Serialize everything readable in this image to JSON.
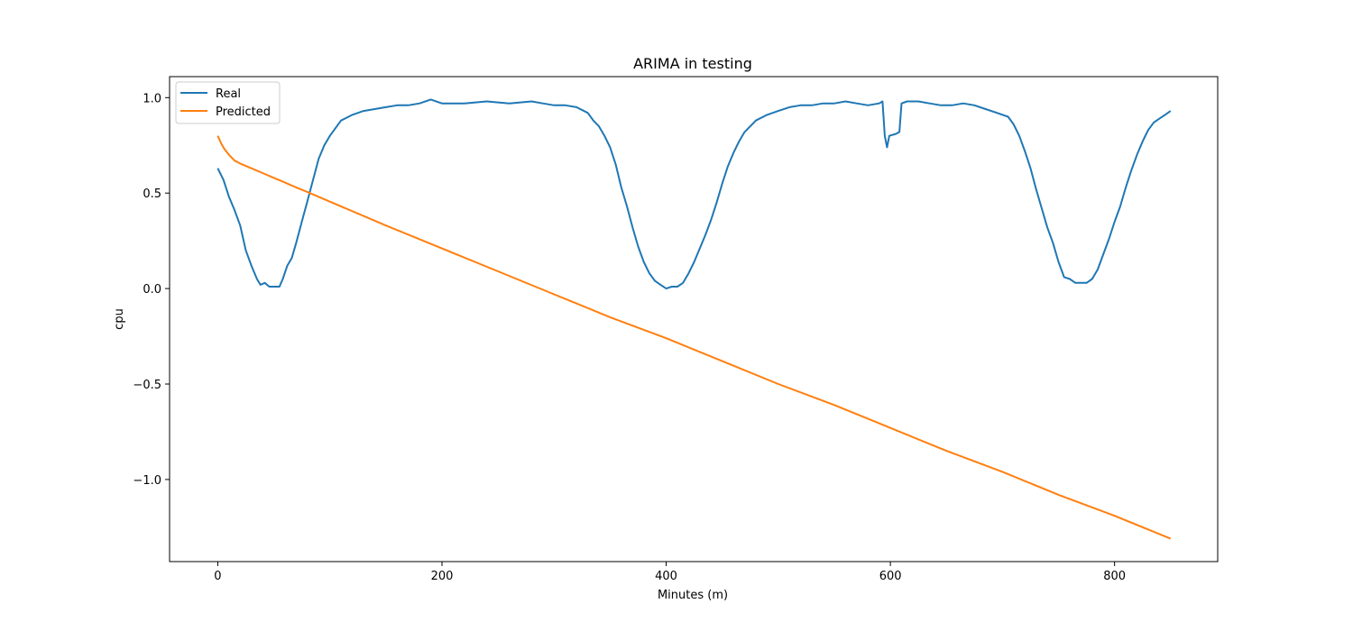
{
  "chart_data": {
    "type": "line",
    "title": "ARIMA in testing",
    "xlabel": "Minutes (m)",
    "ylabel": "cpu",
    "xlim": [
      -43,
      892
    ],
    "ylim": [
      -1.43,
      1.11
    ],
    "xticks": [
      0,
      200,
      400,
      600,
      800
    ],
    "yticks": [
      1.0,
      0.5,
      0.0,
      -0.5,
      -1.0
    ],
    "ytick_labels": [
      "1.0",
      "0.5",
      "0.0",
      "−0.5",
      "−1.0"
    ],
    "legend_position": "upper-left",
    "grid": false,
    "series": [
      {
        "name": "Real",
        "color": "#1f77b4",
        "points": [
          [
            0,
            0.63
          ],
          [
            5,
            0.57
          ],
          [
            10,
            0.48
          ],
          [
            15,
            0.41
          ],
          [
            20,
            0.33
          ],
          [
            25,
            0.2
          ],
          [
            30,
            0.12
          ],
          [
            35,
            0.05
          ],
          [
            38,
            0.02
          ],
          [
            42,
            0.03
          ],
          [
            46,
            0.01
          ],
          [
            50,
            0.01
          ],
          [
            55,
            0.01
          ],
          [
            58,
            0.05
          ],
          [
            62,
            0.12
          ],
          [
            66,
            0.16
          ],
          [
            70,
            0.24
          ],
          [
            75,
            0.35
          ],
          [
            80,
            0.46
          ],
          [
            85,
            0.57
          ],
          [
            90,
            0.68
          ],
          [
            95,
            0.75
          ],
          [
            100,
            0.8
          ],
          [
            105,
            0.84
          ],
          [
            110,
            0.88
          ],
          [
            120,
            0.91
          ],
          [
            130,
            0.93
          ],
          [
            140,
            0.94
          ],
          [
            150,
            0.95
          ],
          [
            160,
            0.96
          ],
          [
            170,
            0.96
          ],
          [
            180,
            0.97
          ],
          [
            190,
            0.99
          ],
          [
            200,
            0.97
          ],
          [
            220,
            0.97
          ],
          [
            240,
            0.98
          ],
          [
            260,
            0.97
          ],
          [
            280,
            0.98
          ],
          [
            290,
            0.97
          ],
          [
            300,
            0.96
          ],
          [
            310,
            0.96
          ],
          [
            320,
            0.95
          ],
          [
            330,
            0.92
          ],
          [
            335,
            0.88
          ],
          [
            340,
            0.85
          ],
          [
            345,
            0.8
          ],
          [
            350,
            0.74
          ],
          [
            355,
            0.65
          ],
          [
            360,
            0.53
          ],
          [
            365,
            0.43
          ],
          [
            370,
            0.32
          ],
          [
            375,
            0.22
          ],
          [
            380,
            0.14
          ],
          [
            385,
            0.08
          ],
          [
            390,
            0.04
          ],
          [
            395,
            0.02
          ],
          [
            400,
            0.0
          ],
          [
            405,
            0.01
          ],
          [
            410,
            0.01
          ],
          [
            415,
            0.03
          ],
          [
            420,
            0.08
          ],
          [
            425,
            0.14
          ],
          [
            430,
            0.21
          ],
          [
            435,
            0.28
          ],
          [
            440,
            0.36
          ],
          [
            445,
            0.45
          ],
          [
            450,
            0.55
          ],
          [
            455,
            0.64
          ],
          [
            460,
            0.71
          ],
          [
            465,
            0.77
          ],
          [
            470,
            0.82
          ],
          [
            475,
            0.85
          ],
          [
            480,
            0.88
          ],
          [
            490,
            0.91
          ],
          [
            500,
            0.93
          ],
          [
            510,
            0.95
          ],
          [
            520,
            0.96
          ],
          [
            530,
            0.96
          ],
          [
            540,
            0.97
          ],
          [
            550,
            0.97
          ],
          [
            560,
            0.98
          ],
          [
            570,
            0.97
          ],
          [
            580,
            0.96
          ],
          [
            590,
            0.97
          ],
          [
            593,
            0.98
          ],
          [
            595,
            0.8
          ],
          [
            597,
            0.74
          ],
          [
            599,
            0.8
          ],
          [
            605,
            0.81
          ],
          [
            608,
            0.82
          ],
          [
            610,
            0.97
          ],
          [
            615,
            0.98
          ],
          [
            625,
            0.98
          ],
          [
            635,
            0.97
          ],
          [
            645,
            0.96
          ],
          [
            655,
            0.96
          ],
          [
            665,
            0.97
          ],
          [
            675,
            0.96
          ],
          [
            685,
            0.94
          ],
          [
            695,
            0.92
          ],
          [
            705,
            0.9
          ],
          [
            710,
            0.86
          ],
          [
            715,
            0.8
          ],
          [
            720,
            0.72
          ],
          [
            725,
            0.63
          ],
          [
            730,
            0.52
          ],
          [
            735,
            0.42
          ],
          [
            740,
            0.32
          ],
          [
            745,
            0.24
          ],
          [
            750,
            0.14
          ],
          [
            755,
            0.06
          ],
          [
            760,
            0.05
          ],
          [
            765,
            0.03
          ],
          [
            770,
            0.03
          ],
          [
            775,
            0.03
          ],
          [
            780,
            0.05
          ],
          [
            785,
            0.1
          ],
          [
            790,
            0.18
          ],
          [
            795,
            0.26
          ],
          [
            800,
            0.35
          ],
          [
            805,
            0.43
          ],
          [
            810,
            0.53
          ],
          [
            815,
            0.62
          ],
          [
            820,
            0.7
          ],
          [
            825,
            0.77
          ],
          [
            830,
            0.83
          ],
          [
            835,
            0.87
          ],
          [
            840,
            0.89
          ],
          [
            845,
            0.91
          ],
          [
            850,
            0.93
          ]
        ]
      },
      {
        "name": "Predicted",
        "color": "#ff7f0e",
        "points": [
          [
            0,
            0.8
          ],
          [
            3,
            0.76
          ],
          [
            6,
            0.73
          ],
          [
            10,
            0.7
          ],
          [
            15,
            0.67
          ],
          [
            20,
            0.655
          ],
          [
            30,
            0.63
          ],
          [
            40,
            0.605
          ],
          [
            50,
            0.58
          ],
          [
            60,
            0.555
          ],
          [
            70,
            0.53
          ],
          [
            80,
            0.505
          ],
          [
            100,
            0.455
          ],
          [
            150,
            0.33
          ],
          [
            200,
            0.21
          ],
          [
            250,
            0.09
          ],
          [
            300,
            -0.03
          ],
          [
            350,
            -0.15
          ],
          [
            400,
            -0.26
          ],
          [
            450,
            -0.38
          ],
          [
            500,
            -0.5
          ],
          [
            550,
            -0.61
          ],
          [
            600,
            -0.73
          ],
          [
            650,
            -0.85
          ],
          [
            700,
            -0.96
          ],
          [
            750,
            -1.08
          ],
          [
            800,
            -1.19
          ],
          [
            850,
            -1.31
          ]
        ]
      }
    ]
  }
}
